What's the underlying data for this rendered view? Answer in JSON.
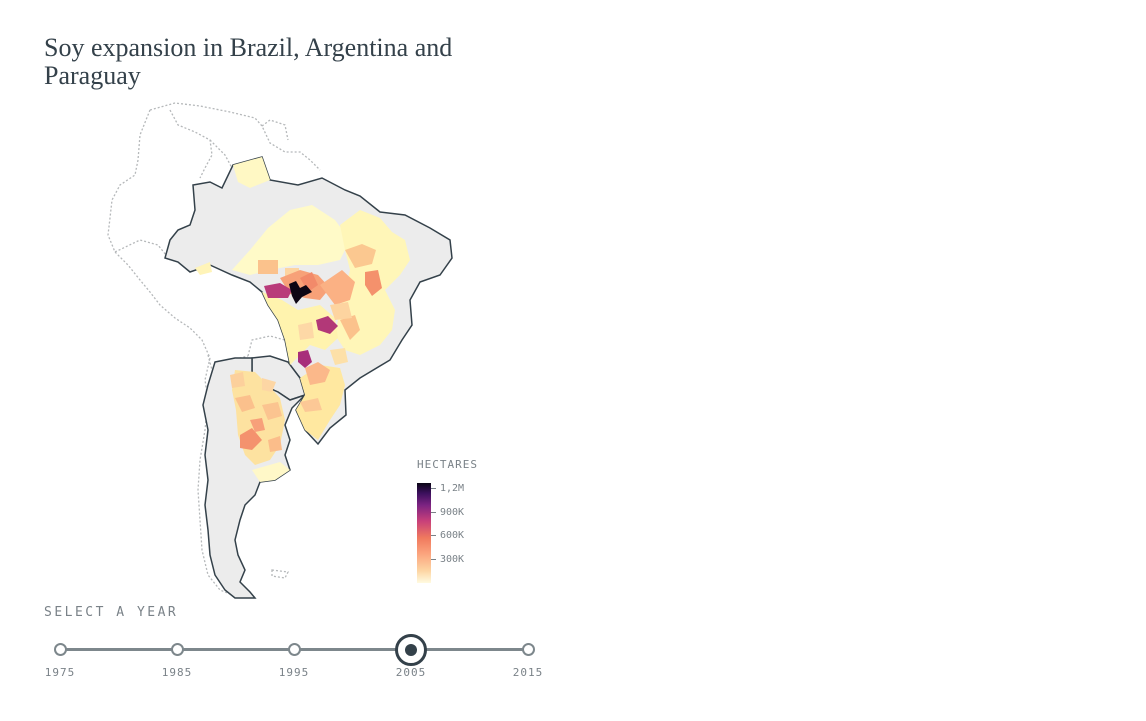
{
  "title": "Soy expansion in Brazil, Argentina and Paraguay",
  "legend": {
    "title": "HECTARES",
    "ticks": [
      "1,2M",
      "900K",
      "600K",
      "300K"
    ]
  },
  "slider": {
    "label": "SELECT A YEAR",
    "years": [
      "1975",
      "1985",
      "1995",
      "2005",
      "2015"
    ],
    "selected": "2005"
  },
  "colors": {
    "text": "#34414a",
    "muted": "#7a8288",
    "country_fill": "#ececec",
    "country_border": "#34414a",
    "other_border": "#b5b8ba"
  }
}
